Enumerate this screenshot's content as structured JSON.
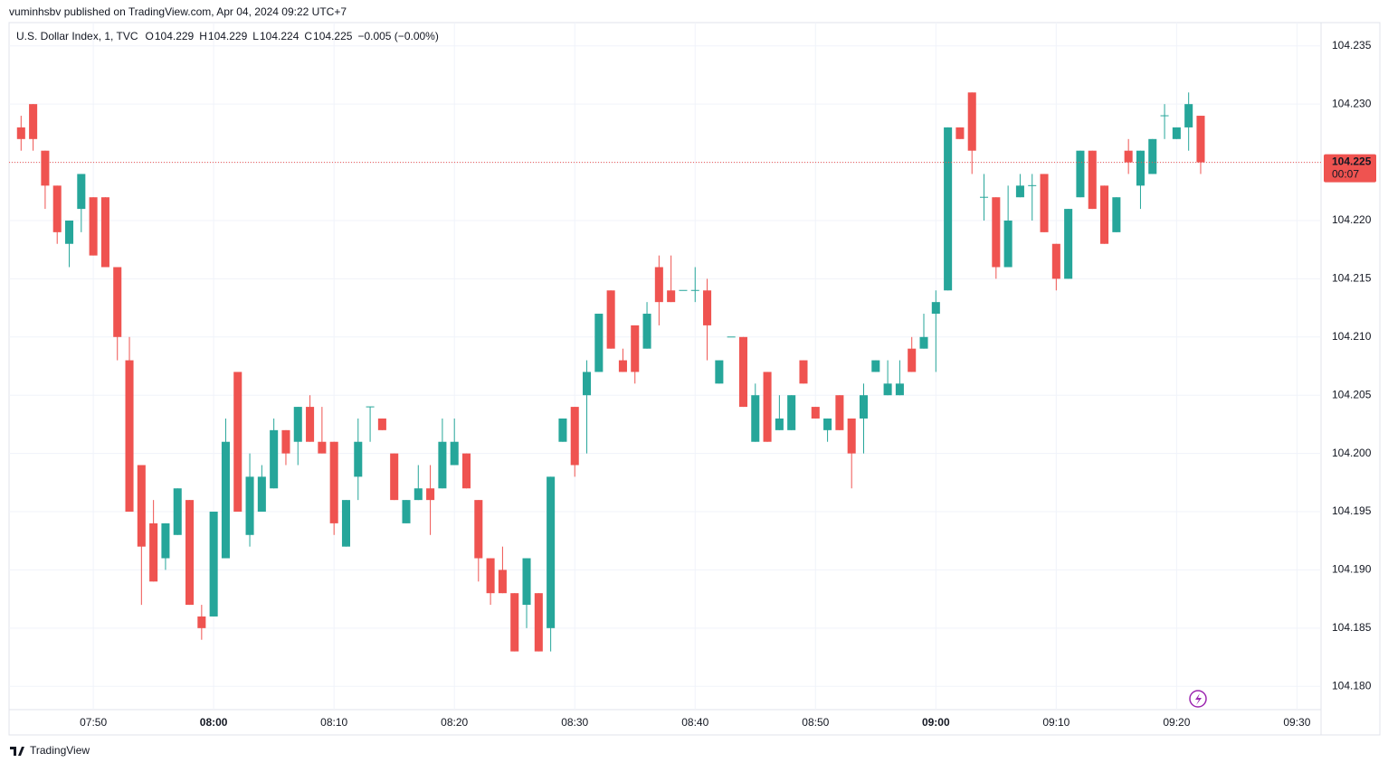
{
  "header": {
    "publisher": "vuminhsbv published on TradingView.com, Apr 04, 2024 09:22 UTC+7",
    "footer": "TradingView"
  },
  "chart_data": {
    "type": "candlestick",
    "title": "U.S. Dollar Index, 1, TVC",
    "legend": {
      "o_label": "O",
      "o": 104.229,
      "h_label": "H",
      "h": 104.229,
      "l_label": "L",
      "l": 104.224,
      "c_label": "C",
      "c": 104.225,
      "change": "−0.005 (−0.00%)"
    },
    "last_price": 104.225,
    "countdown": "00:07",
    "up_color": "#26a69a",
    "down_color": "#ef5350",
    "grid": true,
    "xlim": [
      "07:43",
      "09:32"
    ],
    "xticks": [
      "07:50",
      "08:00",
      "08:10",
      "08:20",
      "08:30",
      "08:40",
      "08:50",
      "09:00",
      "09:10",
      "09:20",
      "09:30"
    ],
    "ylim": [
      104.178,
      104.237
    ],
    "yticks": [
      {
        "value": 104.18,
        "label": "104.180"
      },
      104.185,
      {
        "value": 104.19,
        "label": "104.190"
      },
      104.195,
      {
        "value": 104.2,
        "label": "104.200"
      },
      104.205,
      {
        "value": 104.21,
        "label": "104.210"
      },
      104.215,
      {
        "value": 104.22,
        "label": "104.220"
      },
      104.225,
      {
        "value": 104.23,
        "label": "104.230"
      },
      104.235
    ],
    "x": [
      "07:44",
      "07:45",
      "07:46",
      "07:47",
      "07:48",
      "07:49",
      "07:50",
      "07:51",
      "07:52",
      "07:53",
      "07:54",
      "07:55",
      "07:56",
      "07:57",
      "07:58",
      "07:59",
      "08:00",
      "08:01",
      "08:02",
      "08:03",
      "08:04",
      "08:05",
      "08:06",
      "08:07",
      "08:08",
      "08:09",
      "08:10",
      "08:11",
      "08:12",
      "08:13",
      "08:14",
      "08:15",
      "08:16",
      "08:17",
      "08:18",
      "08:19",
      "08:20",
      "08:21",
      "08:22",
      "08:23",
      "08:24",
      "08:25",
      "08:26",
      "08:27",
      "08:28",
      "08:29",
      "08:30",
      "08:31",
      "08:32",
      "08:33",
      "08:34",
      "08:35",
      "08:36",
      "08:37",
      "08:38",
      "08:39",
      "08:40",
      "08:41",
      "08:42",
      "08:43",
      "08:44",
      "08:45",
      "08:46",
      "08:47",
      "08:48",
      "08:49",
      "08:50",
      "08:51",
      "08:52",
      "08:53",
      "08:54",
      "08:55",
      "08:56",
      "08:57",
      "08:58",
      "08:59",
      "09:00",
      "09:01",
      "09:02",
      "09:03",
      "09:04",
      "09:05",
      "09:06",
      "09:07",
      "09:08",
      "09:09",
      "09:10",
      "09:11",
      "09:12",
      "09:13",
      "09:14",
      "09:15",
      "09:16",
      "09:17",
      "09:18",
      "09:19",
      "09:20",
      "09:21",
      "09:22"
    ],
    "open": [
      104.228,
      104.23,
      104.226,
      104.223,
      104.218,
      104.221,
      104.222,
      104.222,
      104.216,
      104.208,
      104.199,
      104.194,
      104.191,
      104.193,
      104.196,
      104.186,
      104.186,
      104.191,
      104.207,
      104.193,
      104.195,
      104.197,
      104.202,
      104.201,
      104.204,
      104.201,
      104.201,
      104.192,
      104.198,
      104.204,
      104.203,
      104.2,
      104.194,
      104.196,
      104.197,
      104.197,
      104.199,
      104.2,
      104.196,
      104.191,
      104.19,
      104.188,
      104.187,
      104.188,
      104.185,
      104.201,
      104.204,
      104.205,
      104.207,
      104.214,
      104.208,
      104.211,
      104.209,
      104.216,
      104.214,
      104.214,
      104.214,
      104.214,
      104.206,
      104.21,
      104.21,
      104.201,
      104.207,
      104.202,
      104.202,
      104.208,
      104.204,
      104.202,
      104.205,
      104.203,
      104.203,
      104.207,
      104.205,
      104.205,
      104.209,
      104.209,
      104.212,
      104.214,
      104.228,
      104.231,
      104.222,
      104.222,
      104.216,
      104.222,
      104.223,
      104.224,
      104.218,
      104.215,
      104.222,
      104.226,
      104.223,
      104.219,
      104.226,
      104.223,
      104.224,
      104.229,
      104.227,
      104.228,
      104.229
    ],
    "high": [
      104.229,
      104.23,
      104.226,
      104.223,
      104.22,
      104.224,
      104.222,
      104.222,
      104.216,
      104.21,
      104.199,
      104.196,
      104.194,
      104.197,
      104.196,
      104.187,
      104.195,
      104.203,
      104.207,
      104.2,
      104.199,
      104.203,
      104.202,
      104.204,
      104.205,
      104.204,
      104.201,
      104.196,
      104.203,
      104.204,
      104.203,
      104.2,
      104.196,
      104.199,
      104.199,
      104.203,
      104.203,
      104.2,
      104.196,
      104.191,
      104.192,
      104.188,
      104.191,
      104.188,
      104.198,
      104.203,
      104.204,
      104.208,
      104.212,
      104.214,
      104.209,
      104.211,
      104.213,
      104.217,
      104.217,
      104.214,
      104.216,
      104.215,
      104.208,
      104.21,
      104.21,
      104.206,
      104.207,
      104.205,
      104.205,
      104.208,
      104.204,
      104.203,
      104.205,
      104.203,
      104.206,
      104.208,
      104.208,
      104.208,
      104.21,
      104.212,
      104.214,
      104.228,
      104.228,
      104.231,
      104.224,
      104.222,
      104.223,
      104.224,
      104.224,
      104.224,
      104.218,
      104.221,
      104.226,
      104.226,
      104.223,
      104.222,
      104.227,
      104.226,
      104.227,
      104.23,
      104.228,
      104.231,
      104.229
    ],
    "low": [
      104.226,
      104.226,
      104.221,
      104.218,
      104.216,
      104.219,
      104.217,
      104.216,
      104.208,
      104.195,
      104.187,
      104.189,
      104.19,
      104.193,
      104.187,
      104.184,
      104.186,
      104.191,
      104.195,
      104.192,
      104.195,
      104.197,
      104.199,
      104.199,
      104.201,
      104.2,
      104.193,
      104.192,
      104.196,
      104.201,
      104.202,
      104.196,
      104.194,
      104.196,
      104.193,
      104.197,
      104.199,
      104.197,
      104.189,
      104.187,
      104.188,
      104.183,
      104.185,
      104.183,
      104.183,
      104.201,
      104.198,
      104.2,
      104.207,
      104.209,
      104.207,
      104.206,
      104.209,
      104.211,
      104.213,
      104.214,
      104.213,
      104.208,
      104.206,
      104.21,
      104.204,
      104.201,
      104.201,
      104.202,
      104.202,
      104.206,
      104.203,
      104.201,
      104.202,
      104.197,
      104.2,
      104.207,
      104.205,
      104.205,
      104.207,
      104.209,
      104.207,
      104.214,
      104.227,
      104.224,
      104.22,
      104.215,
      104.216,
      104.222,
      104.22,
      104.219,
      104.214,
      104.215,
      104.222,
      104.221,
      104.218,
      104.219,
      104.224,
      104.221,
      104.224,
      104.227,
      104.227,
      104.226,
      104.224
    ],
    "close": [
      104.227,
      104.227,
      104.223,
      104.219,
      104.22,
      104.224,
      104.217,
      104.216,
      104.21,
      104.195,
      104.192,
      104.189,
      104.194,
      104.197,
      104.187,
      104.185,
      104.195,
      104.201,
      104.195,
      104.198,
      104.198,
      104.202,
      104.2,
      104.204,
      104.201,
      104.2,
      104.194,
      104.196,
      104.201,
      104.204,
      104.202,
      104.196,
      104.196,
      104.197,
      104.196,
      104.201,
      104.201,
      104.197,
      104.191,
      104.188,
      104.188,
      104.183,
      104.191,
      104.183,
      104.198,
      104.203,
      104.199,
      104.207,
      104.212,
      104.209,
      104.207,
      104.207,
      104.212,
      104.213,
      104.213,
      104.214,
      104.214,
      104.211,
      104.208,
      104.21,
      104.204,
      104.205,
      104.201,
      104.203,
      104.205,
      104.206,
      104.203,
      104.203,
      104.202,
      104.2,
      104.205,
      104.208,
      104.206,
      104.206,
      104.207,
      104.21,
      104.213,
      104.228,
      104.227,
      104.226,
      104.222,
      104.216,
      104.22,
      104.223,
      104.223,
      104.219,
      104.215,
      104.221,
      104.226,
      104.221,
      104.218,
      104.222,
      104.225,
      104.226,
      104.227,
      104.229,
      104.228,
      104.23,
      104.225
    ]
  }
}
